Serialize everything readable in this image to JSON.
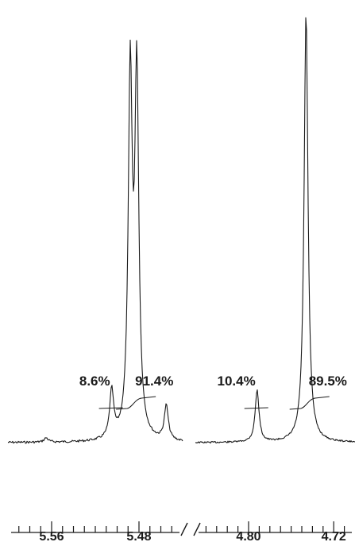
{
  "chart_data": {
    "type": "line",
    "title": "",
    "xlabel": "",
    "ylabel": "",
    "x_axis_reversed": true,
    "broken_axis": true,
    "panels": [
      {
        "xlim": [
          5.6,
          5.44
        ],
        "tick_labels": [
          {
            "x": 5.56,
            "label": "5.56"
          },
          {
            "x": 5.48,
            "label": "5.48"
          }
        ],
        "integrals": [
          {
            "x": 5.505,
            "label": "8.6%"
          },
          {
            "x": 5.485,
            "label": "91.4%"
          }
        ],
        "peaks": [
          {
            "x": 5.565,
            "height": 0.01
          },
          {
            "x": 5.505,
            "height": 0.11
          },
          {
            "x": 5.488,
            "height": 0.83
          },
          {
            "x": 5.482,
            "height": 0.83
          },
          {
            "x": 5.455,
            "height": 0.08
          }
        ]
      },
      {
        "xlim": [
          4.85,
          4.7
        ],
        "tick_labels": [
          {
            "x": 4.8,
            "label": "4.80"
          },
          {
            "x": 4.72,
            "label": "4.72"
          }
        ],
        "integrals": [
          {
            "x": 4.792,
            "label": "10.4%"
          },
          {
            "x": 4.745,
            "label": "89.5%"
          }
        ],
        "peaks": [
          {
            "x": 4.792,
            "height": 0.12
          },
          {
            "x": 4.746,
            "height": 1.0
          }
        ]
      }
    ]
  }
}
